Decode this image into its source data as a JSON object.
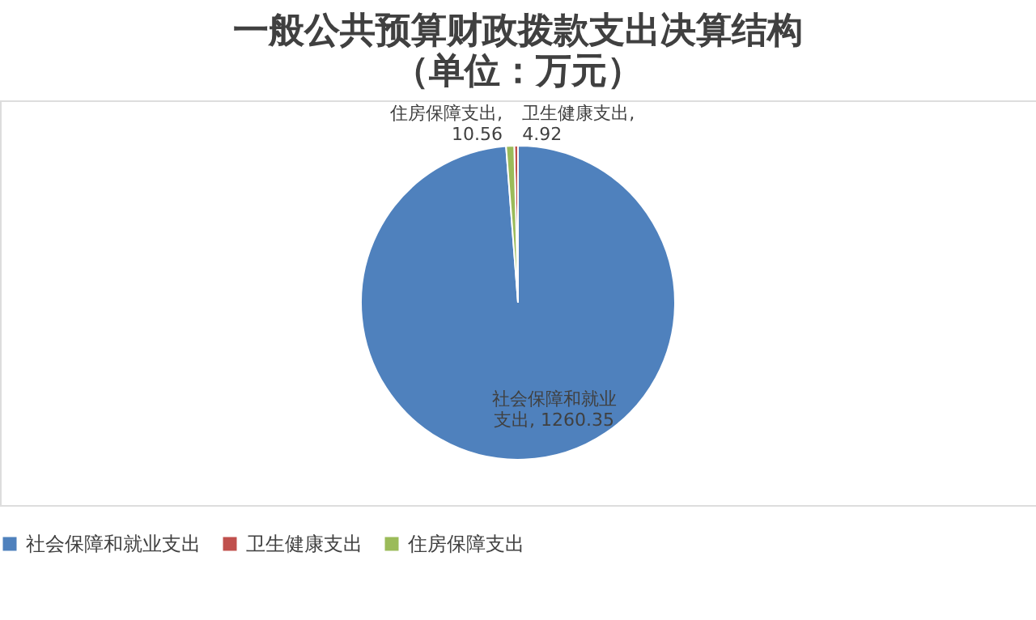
{
  "chart_data": {
    "type": "pie",
    "title": "一般公共预算财政拨款支出决算结构",
    "subtitle": "（单位：万元）",
    "categories": [
      "社会保障和就业支出",
      "卫生健康支出",
      "住房保障支出"
    ],
    "values": [
      1260.35,
      4.92,
      10.56
    ],
    "value_labels": [
      "社会保障和就业支出, 1260.35",
      "卫生健康支出, 4.92",
      "住房保障支出, 10.56"
    ],
    "colors": [
      "#4f81bd",
      "#c0504d",
      "#9bbb59"
    ],
    "legend": "bottom"
  }
}
